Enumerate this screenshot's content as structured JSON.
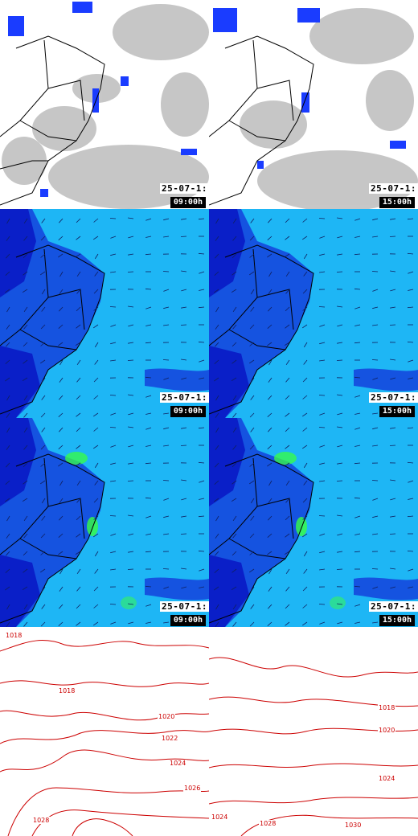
{
  "colors": {
    "contour": "#cc0000",
    "satellite_cloud": "#bdbdbd",
    "satellite_cold_top": "#1a3cff",
    "wind_low": "#0a1fc8",
    "wind_mid": "#1ec8ff",
    "wind_high": "#38ff40"
  },
  "rows": [
    {
      "name": "satellite",
      "panels": [
        {
          "date": "25-07-1:",
          "time": "09:00h"
        },
        {
          "date": "25-07-1:",
          "time": "15:00h"
        }
      ]
    },
    {
      "name": "wind-level-1",
      "panels": [
        {
          "date": "25-07-1:",
          "time": "09:00h"
        },
        {
          "date": "25-07-1:",
          "time": "15:00h"
        }
      ]
    },
    {
      "name": "wind-level-2",
      "panels": [
        {
          "date": "25-07-1:",
          "time": "09:00h"
        },
        {
          "date": "25-07-1:",
          "time": "15:00h"
        }
      ]
    }
  ],
  "pressure": {
    "left_labels": [
      "1018",
      "1018",
      "1020",
      "1022",
      "1024",
      "1026",
      "1028"
    ],
    "right_labels": [
      "1018",
      "1020",
      "1024",
      "1024",
      "1028",
      "1030"
    ]
  }
}
